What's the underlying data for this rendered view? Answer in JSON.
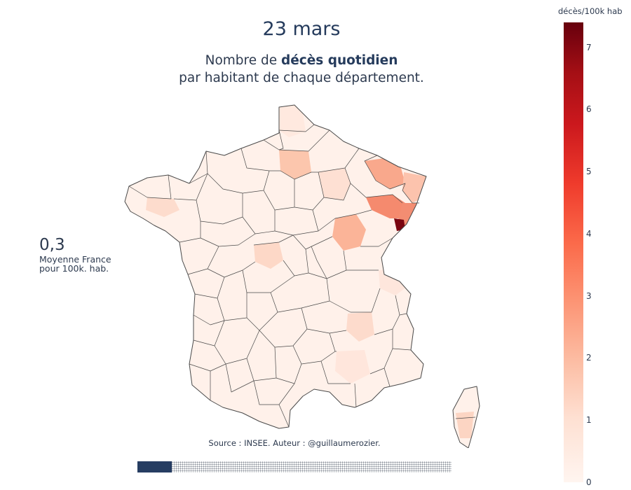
{
  "title": "23 mars",
  "subtitle": {
    "prefix": "Nombre de ",
    "bold": "décès quotidien",
    "line2": "par habitant de chaque département."
  },
  "average": {
    "value": "0,3",
    "label_line1": "Moyenne France",
    "label_line2": "pour 100k. hab."
  },
  "source": "Source : INSEE. Auteur : @guillaumerozier.",
  "colorbar": {
    "title": "décès/100k hab",
    "ticks": [
      "0",
      "1",
      "2",
      "3",
      "4",
      "5",
      "6",
      "7"
    ],
    "range": [
      0,
      7.4
    ],
    "colors": [
      "#fff5f0",
      "#fee0d2",
      "#fcbba1",
      "#fc9272",
      "#fb6a4a",
      "#ef3b2c",
      "#cb181d",
      "#a50f15",
      "#67000d"
    ]
  },
  "slider": {
    "progress": 0.11
  }
}
